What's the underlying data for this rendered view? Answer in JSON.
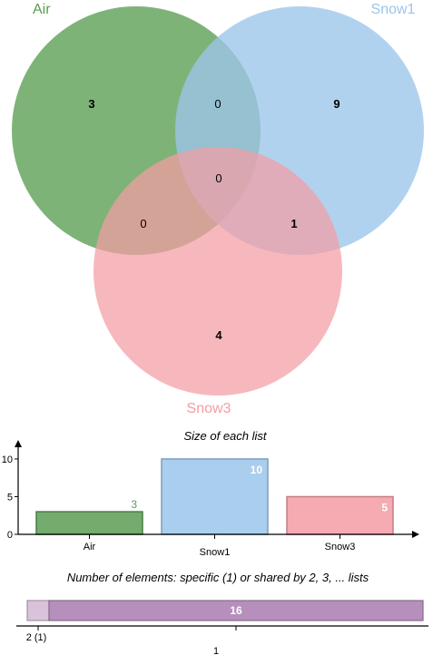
{
  "venn": {
    "sets": [
      {
        "name": "Air",
        "color": "#5a9e52"
      },
      {
        "name": "Snow1",
        "color": "#9bc5ea"
      },
      {
        "name": "Snow3",
        "color": "#f49ca4"
      }
    ],
    "regions": {
      "air_only": "3",
      "air_snow1": "0",
      "snow1_only": "9",
      "all_three": "0",
      "air_snow3": "0",
      "snow1_snow3": "1",
      "snow3_only": "4"
    }
  },
  "chart_data": [
    {
      "type": "bar",
      "title": "Size of each list",
      "categories": [
        "Air",
        "Snow1",
        "Snow3"
      ],
      "values": [
        3,
        10,
        5
      ],
      "value_labels": [
        "3",
        "10",
        "5"
      ],
      "colors": [
        "#5a9e52",
        "#9bc5ea",
        "#f49ca4"
      ],
      "ylim": [
        0,
        13
      ],
      "yticks": [
        "0",
        "5",
        "10"
      ],
      "grid": false
    },
    {
      "type": "bar",
      "title": "Number of elements: specific (1) or shared by 2, 3, ... lists",
      "categories": [
        "2 (1)",
        "1"
      ],
      "values": [
        1,
        16
      ],
      "value_labels": [
        "",
        "16"
      ],
      "colors": [
        "#d9c3da",
        "#b68fbc"
      ],
      "orientation": "stacked-horizontal"
    }
  ]
}
